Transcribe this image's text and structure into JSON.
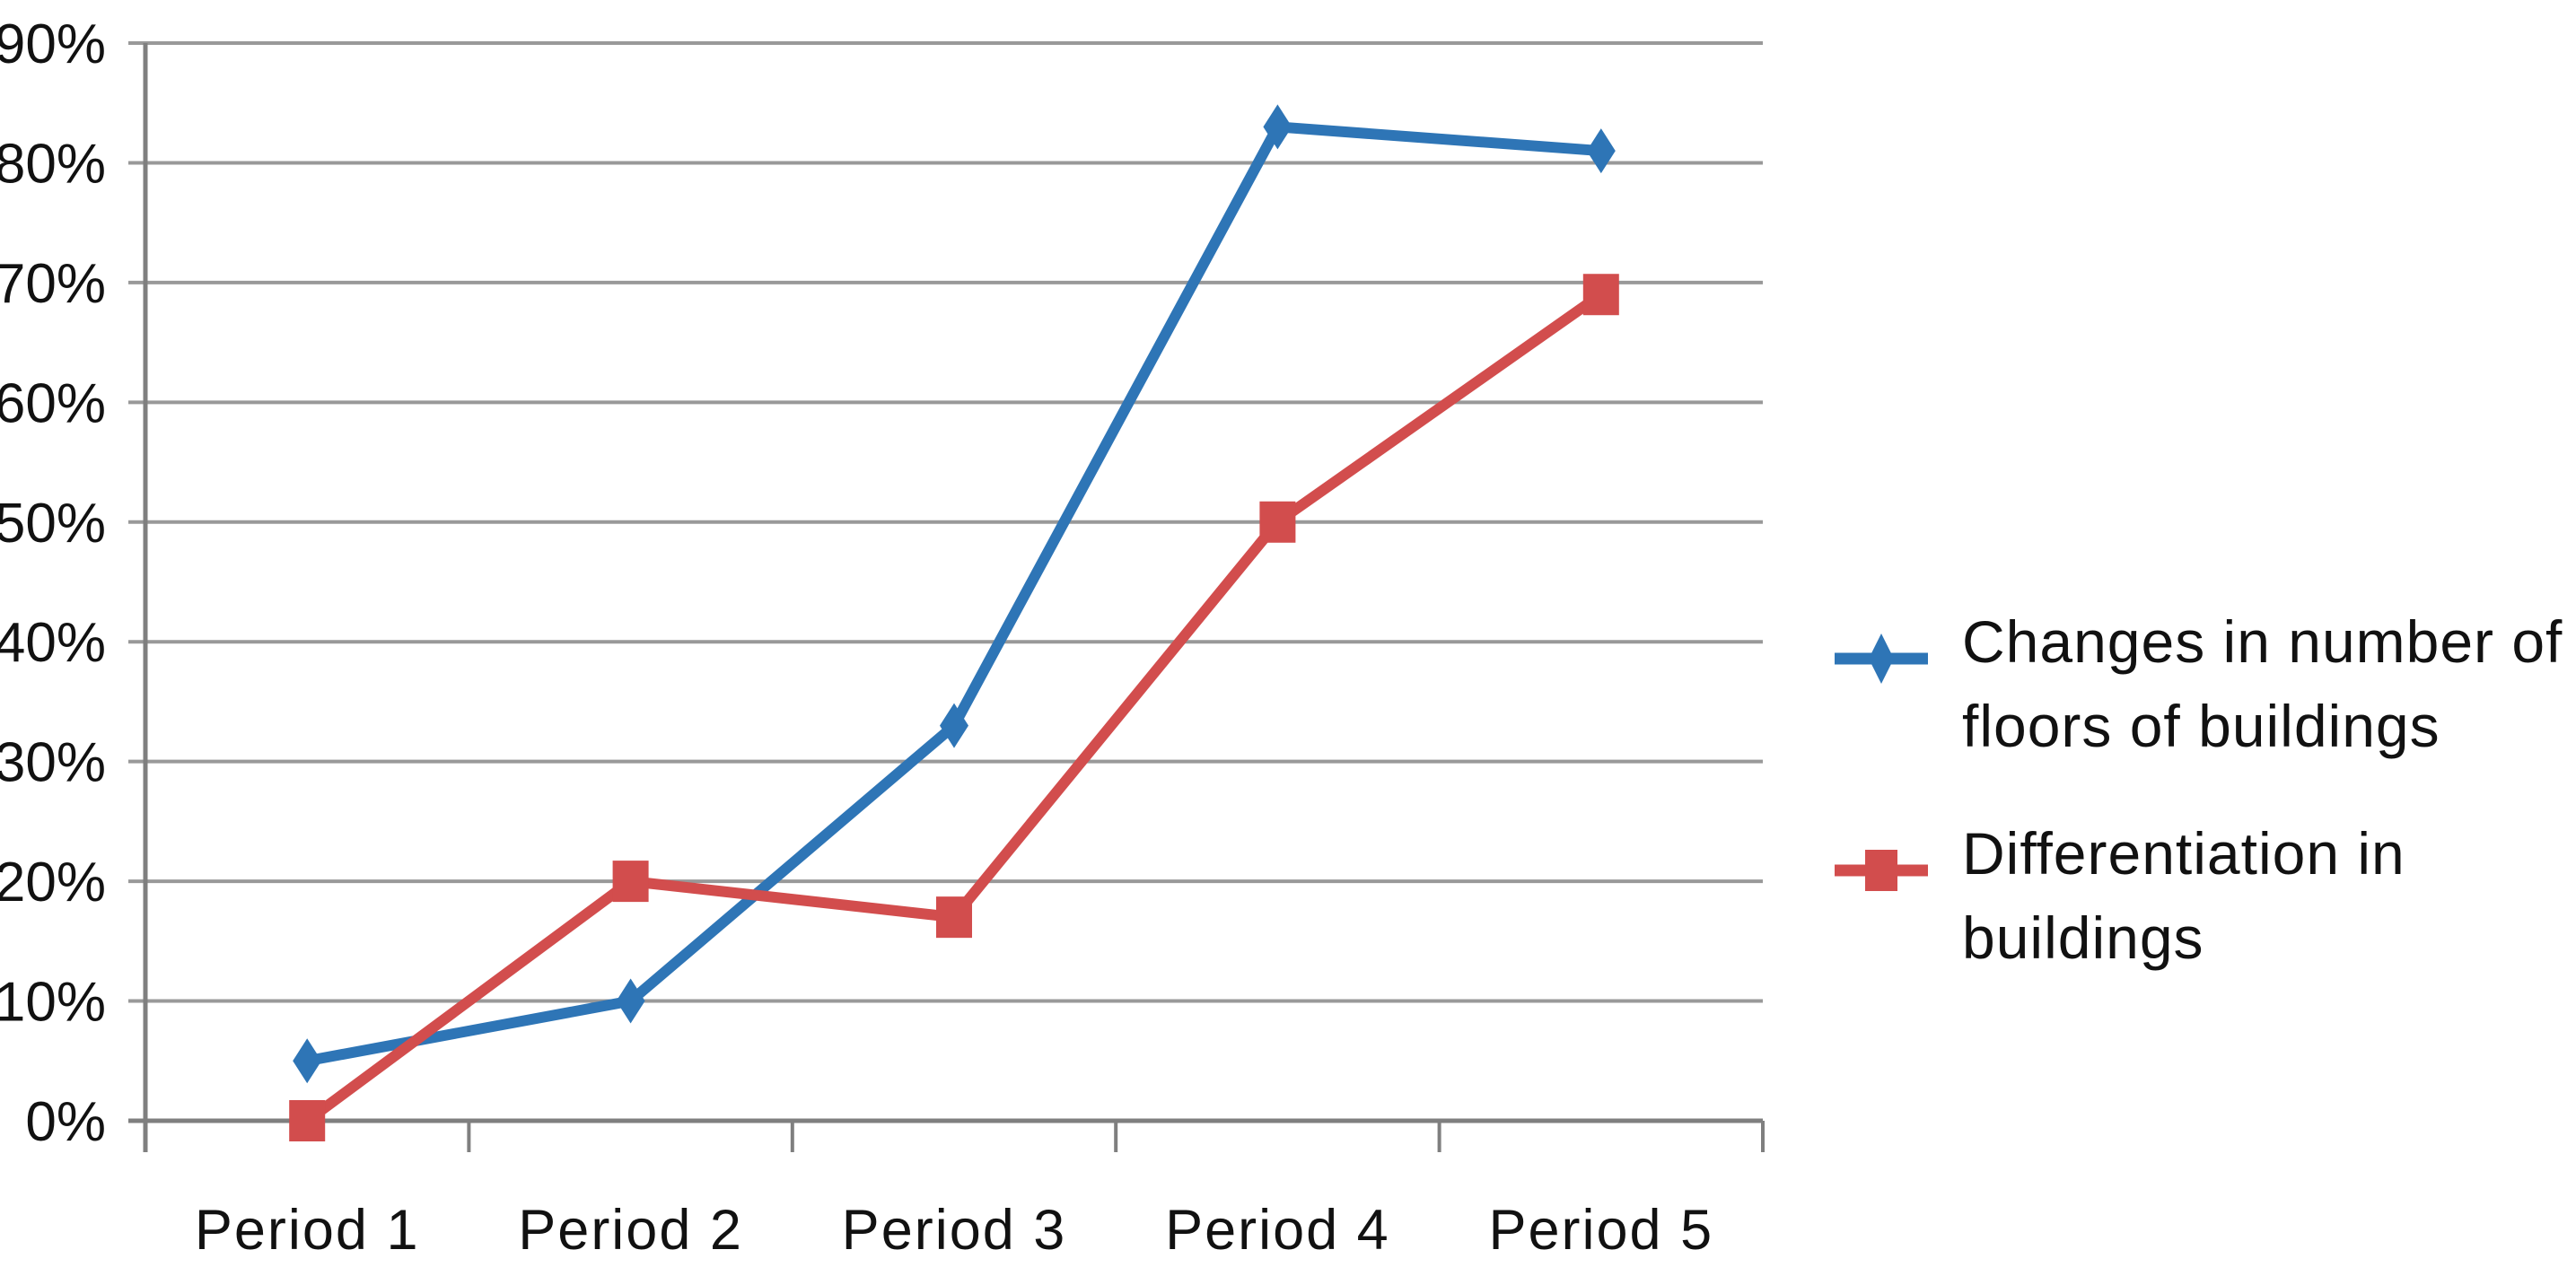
{
  "chart_data": {
    "type": "line",
    "title": "",
    "xlabel": "",
    "ylabel": "",
    "categories": [
      "Period 1",
      "Period 2",
      "Period 3",
      "Period 4",
      "Period 5"
    ],
    "y_ticks": [
      "0%",
      "10%",
      "20%",
      "30%",
      "40%",
      "50%",
      "60%",
      "70%",
      "80%",
      "90%"
    ],
    "ylim": [
      0,
      90
    ],
    "y_unit": "%",
    "grid": "horizontal",
    "legend_position": "right",
    "series": [
      {
        "name": "Changes in number of floors of buildings",
        "marker": "diamond",
        "color": "#2E75B6",
        "values": [
          5,
          10,
          33,
          83,
          81
        ]
      },
      {
        "name": "Differentiation in buildings",
        "marker": "square",
        "color": "#D24D4D",
        "values": [
          0,
          20,
          17,
          50,
          69
        ]
      }
    ]
  },
  "colors": {
    "gridline": "#999999",
    "axis": "#7F7F7F",
    "text": "#111111",
    "background": "#FFFFFF"
  }
}
